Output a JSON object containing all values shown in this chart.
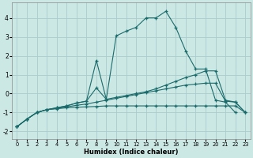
{
  "xlabel": "Humidex (Indice chaleur)",
  "bg_color": "#cce8e4",
  "grid_color": "#aacccc",
  "line_color": "#1a6b6b",
  "xlim": [
    -0.5,
    23.5
  ],
  "ylim": [
    -2.4,
    4.8
  ],
  "xticks": [
    0,
    1,
    2,
    3,
    4,
    5,
    6,
    7,
    8,
    9,
    10,
    11,
    12,
    13,
    14,
    15,
    16,
    17,
    18,
    19,
    20,
    21,
    22,
    23
  ],
  "yticks": [
    -2,
    -1,
    0,
    1,
    2,
    3,
    4
  ],
  "series": [
    {
      "x": [
        0,
        1,
        2,
        3,
        4,
        5,
        6,
        7,
        8,
        9,
        10,
        11,
        12,
        13,
        14,
        15,
        16,
        17,
        18,
        19,
        20,
        21,
        22,
        23
      ],
      "y": [
        -1.75,
        -1.35,
        -1.0,
        -0.85,
        -0.8,
        -0.75,
        -0.72,
        -0.7,
        -0.68,
        -0.65,
        -0.65,
        -0.65,
        -0.65,
        -0.65,
        -0.65,
        -0.65,
        -0.65,
        -0.65,
        -0.65,
        -0.65,
        -0.65,
        -0.65,
        -0.65,
        -1.0
      ]
    },
    {
      "x": [
        0,
        1,
        2,
        3,
        4,
        5,
        6,
        7,
        8,
        9,
        10,
        11,
        12,
        13,
        14,
        15,
        16,
        17,
        18,
        19,
        20,
        21,
        22,
        23
      ],
      "y": [
        -1.75,
        -1.35,
        -1.0,
        -0.85,
        -0.78,
        -0.7,
        -0.62,
        -0.55,
        -0.45,
        -0.35,
        -0.25,
        -0.15,
        -0.05,
        0.05,
        0.15,
        0.25,
        0.35,
        0.45,
        0.5,
        0.55,
        0.55,
        -0.4,
        -0.45,
        -1.0
      ]
    },
    {
      "x": [
        0,
        1,
        2,
        3,
        4,
        5,
        6,
        7,
        8,
        9,
        10,
        11,
        12,
        13,
        14,
        15,
        16,
        17,
        18,
        19,
        20,
        21,
        22,
        23
      ],
      "y": [
        -1.75,
        -1.35,
        -1.0,
        -0.85,
        -0.75,
        -0.65,
        -0.5,
        -0.4,
        0.3,
        -0.3,
        -0.2,
        -0.1,
        0.0,
        0.1,
        0.25,
        0.45,
        0.65,
        0.85,
        1.0,
        1.2,
        1.2,
        -0.35,
        -0.45,
        -1.0
      ]
    },
    {
      "x": [
        0,
        1,
        2,
        3,
        4,
        5,
        6,
        7,
        8,
        9,
        10,
        11,
        12,
        13,
        14,
        15,
        16,
        17,
        18,
        19,
        20,
        21,
        22,
        23
      ],
      "y": [
        -1.75,
        -1.35,
        -1.0,
        -0.85,
        -0.75,
        -0.65,
        -0.5,
        -0.4,
        1.75,
        -0.3,
        3.05,
        3.3,
        3.5,
        4.0,
        4.0,
        4.35,
        3.5,
        2.25,
        1.3,
        1.3,
        -0.35,
        -0.45,
        -1.0,
        null
      ]
    }
  ]
}
